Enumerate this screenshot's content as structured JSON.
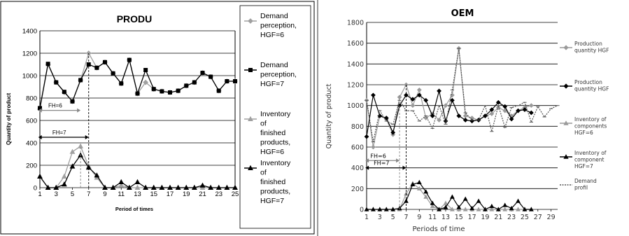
{
  "chart_data": [
    {
      "type": "line",
      "title": "PRODU",
      "xlabel": "Period of times",
      "ylabel": "Quantity of product",
      "ylim": [
        0,
        1400
      ],
      "xlim": [
        1,
        25
      ],
      "yticks": [
        "0",
        "200",
        "400",
        "600",
        "800",
        "1000",
        "1200",
        "1400"
      ],
      "xticks": [
        "1",
        "3",
        "5",
        "7",
        "9",
        "11",
        "13",
        "15",
        "17",
        "19",
        "21",
        "23",
        "25"
      ],
      "grid": "horizontal",
      "legend_position": "right",
      "series": [
        {
          "name": "Demand perception, HGF=6",
          "color": "#a0a0a0",
          "marker": "diamond",
          "x": [
            1,
            2,
            3,
            4,
            5,
            6,
            7,
            8,
            9,
            10,
            11,
            12,
            13,
            14,
            15,
            16,
            17,
            18,
            19,
            20,
            21,
            22,
            23,
            24,
            25
          ],
          "values": [
            700,
            1100,
            940,
            850,
            770,
            960,
            1200,
            1070,
            1120,
            1020,
            930,
            1140,
            840,
            940,
            880,
            860,
            850,
            865,
            910,
            940,
            1025,
            990,
            865,
            950,
            950
          ]
        },
        {
          "name": "Demand perception, HGF=7",
          "color": "#000000",
          "marker": "square",
          "x": [
            1,
            2,
            3,
            4,
            5,
            6,
            7,
            8,
            9,
            10,
            11,
            12,
            13,
            14,
            15,
            16,
            17,
            18,
            19,
            20,
            21,
            22,
            23,
            24,
            25
          ],
          "values": [
            710,
            1105,
            940,
            855,
            770,
            960,
            1100,
            1070,
            1120,
            1020,
            930,
            1140,
            840,
            1050,
            880,
            860,
            850,
            865,
            910,
            940,
            1025,
            990,
            865,
            950,
            950
          ]
        },
        {
          "name": "Inventory of finished products, HGF=6",
          "color": "#a0a0a0",
          "marker": "triangle",
          "x": [
            1,
            2,
            3,
            4,
            5,
            6,
            7,
            8,
            9,
            10,
            11,
            12,
            13,
            14,
            15,
            16,
            17,
            18,
            19,
            20,
            21,
            22,
            23,
            24,
            25
          ],
          "values": [
            100,
            0,
            0,
            100,
            320,
            370,
            190,
            90,
            0,
            0,
            20,
            0,
            0,
            0,
            0,
            0,
            0,
            0,
            0,
            0,
            0,
            0,
            0,
            0,
            0
          ]
        },
        {
          "name": "Inventory of finished products, HGF=7",
          "color": "#000000",
          "marker": "triangle",
          "x": [
            1,
            2,
            3,
            4,
            5,
            6,
            7,
            8,
            9,
            10,
            11,
            12,
            13,
            14,
            15,
            16,
            17,
            18,
            19,
            20,
            21,
            22,
            23,
            24,
            25
          ],
          "values": [
            100,
            0,
            0,
            30,
            190,
            290,
            180,
            110,
            0,
            0,
            50,
            0,
            50,
            0,
            0,
            0,
            0,
            0,
            0,
            0,
            20,
            0,
            0,
            0,
            0
          ]
        }
      ],
      "annotations": [
        {
          "text": "FH=6",
          "from_x": 0.8,
          "to_x": 6,
          "y": 690
        },
        {
          "text": "FH=7",
          "from_x": 0.8,
          "to_x": 7,
          "y": 450
        }
      ]
    },
    {
      "type": "line",
      "title": "OEM",
      "xlabel": "Periods of time",
      "ylabel": "Quantity of product",
      "ylim": [
        0,
        1800
      ],
      "xlim": [
        1,
        30
      ],
      "yticks": [
        "0",
        "200",
        "400",
        "600",
        "800",
        "1000",
        "1200",
        "1400",
        "1600",
        "1800"
      ],
      "xticks": [
        "1",
        "3",
        "5",
        "7",
        "9",
        "11",
        "13",
        "15",
        "17",
        "19",
        "21",
        "23",
        "25",
        "27",
        "29"
      ],
      "grid": "horizontal",
      "legend_position": "right",
      "series": [
        {
          "name": "Production quantity HGF",
          "color": "#9a9a9a",
          "marker": "diamond",
          "x": [
            1,
            2,
            3,
            4,
            5,
            6,
            7,
            8,
            9,
            10,
            11,
            12,
            13,
            14,
            15,
            16,
            17,
            18,
            19,
            20,
            21,
            22,
            23,
            24,
            25,
            26
          ],
          "values": [
            1050,
            600,
            900,
            870,
            720,
            1080,
            1200,
            1000,
            1150,
            880,
            920,
            860,
            1000,
            1100,
            1550,
            900,
            880,
            860,
            900,
            920,
            980,
            950,
            900,
            950,
            980,
            1000
          ]
        },
        {
          "name": "Production quantity HGF",
          "color": "#000000",
          "marker": "diamond",
          "x": [
            1,
            2,
            3,
            4,
            5,
            6,
            7,
            8,
            9,
            10,
            11,
            12,
            13,
            14,
            15,
            16,
            17,
            18,
            19,
            20,
            21,
            22,
            23,
            24,
            25,
            26
          ],
          "values": [
            700,
            1100,
            900,
            880,
            740,
            1000,
            1100,
            1060,
            1100,
            1050,
            900,
            1140,
            850,
            1050,
            900,
            860,
            850,
            860,
            900,
            960,
            1030,
            990,
            870,
            950,
            960,
            930
          ]
        },
        {
          "name": "Inventory of components HGF=6",
          "color": "#9a9a9a",
          "marker": "triangle",
          "x": [
            1,
            2,
            3,
            4,
            5,
            6,
            7,
            8,
            9,
            10,
            11,
            12,
            13,
            14,
            15,
            16,
            17,
            18,
            19,
            20,
            21,
            22,
            23,
            24,
            25,
            26
          ],
          "values": [
            0,
            0,
            0,
            0,
            0,
            0,
            150,
            250,
            200,
            120,
            30,
            0,
            60,
            0,
            0,
            0,
            0,
            0,
            0,
            0,
            0,
            0,
            0,
            0,
            0,
            0
          ]
        },
        {
          "name": "Inventory of component HGF=7",
          "color": "#000000",
          "marker": "triangle",
          "x": [
            1,
            2,
            3,
            4,
            5,
            6,
            7,
            8,
            9,
            10,
            11,
            12,
            13,
            14,
            15,
            16,
            17,
            18,
            19,
            20,
            21,
            22,
            23,
            24,
            25,
            26
          ],
          "values": [
            0,
            0,
            0,
            0,
            0,
            10,
            80,
            240,
            260,
            170,
            60,
            0,
            20,
            120,
            20,
            100,
            10,
            80,
            0,
            30,
            0,
            40,
            10,
            80,
            0,
            0
          ]
        },
        {
          "name": "Demand profil",
          "color": "#555555",
          "marker": "dash",
          "dashed": true,
          "x": [
            1,
            2,
            3,
            4,
            5,
            6,
            7,
            8,
            9,
            10,
            11,
            12,
            13,
            14,
            15,
            16,
            17,
            18,
            19,
            20,
            21,
            22,
            23,
            24,
            25,
            26,
            27,
            28,
            29,
            30
          ],
          "values": [
            1050,
            650,
            950,
            850,
            820,
            1050,
            950,
            950,
            850,
            900,
            780,
            1000,
            820,
            1150,
            1550,
            930,
            860,
            860,
            1000,
            750,
            1000,
            790,
            980,
            1000,
            1030,
            840,
            990,
            890,
            970,
            1000
          ]
        }
      ],
      "annotations": [
        {
          "text": "FH=6",
          "from_x": 0.8,
          "to_x": 6,
          "y": 470
        },
        {
          "text": "FH=7",
          "from_x": 0.8,
          "to_x": 7,
          "y": 400
        }
      ]
    }
  ]
}
